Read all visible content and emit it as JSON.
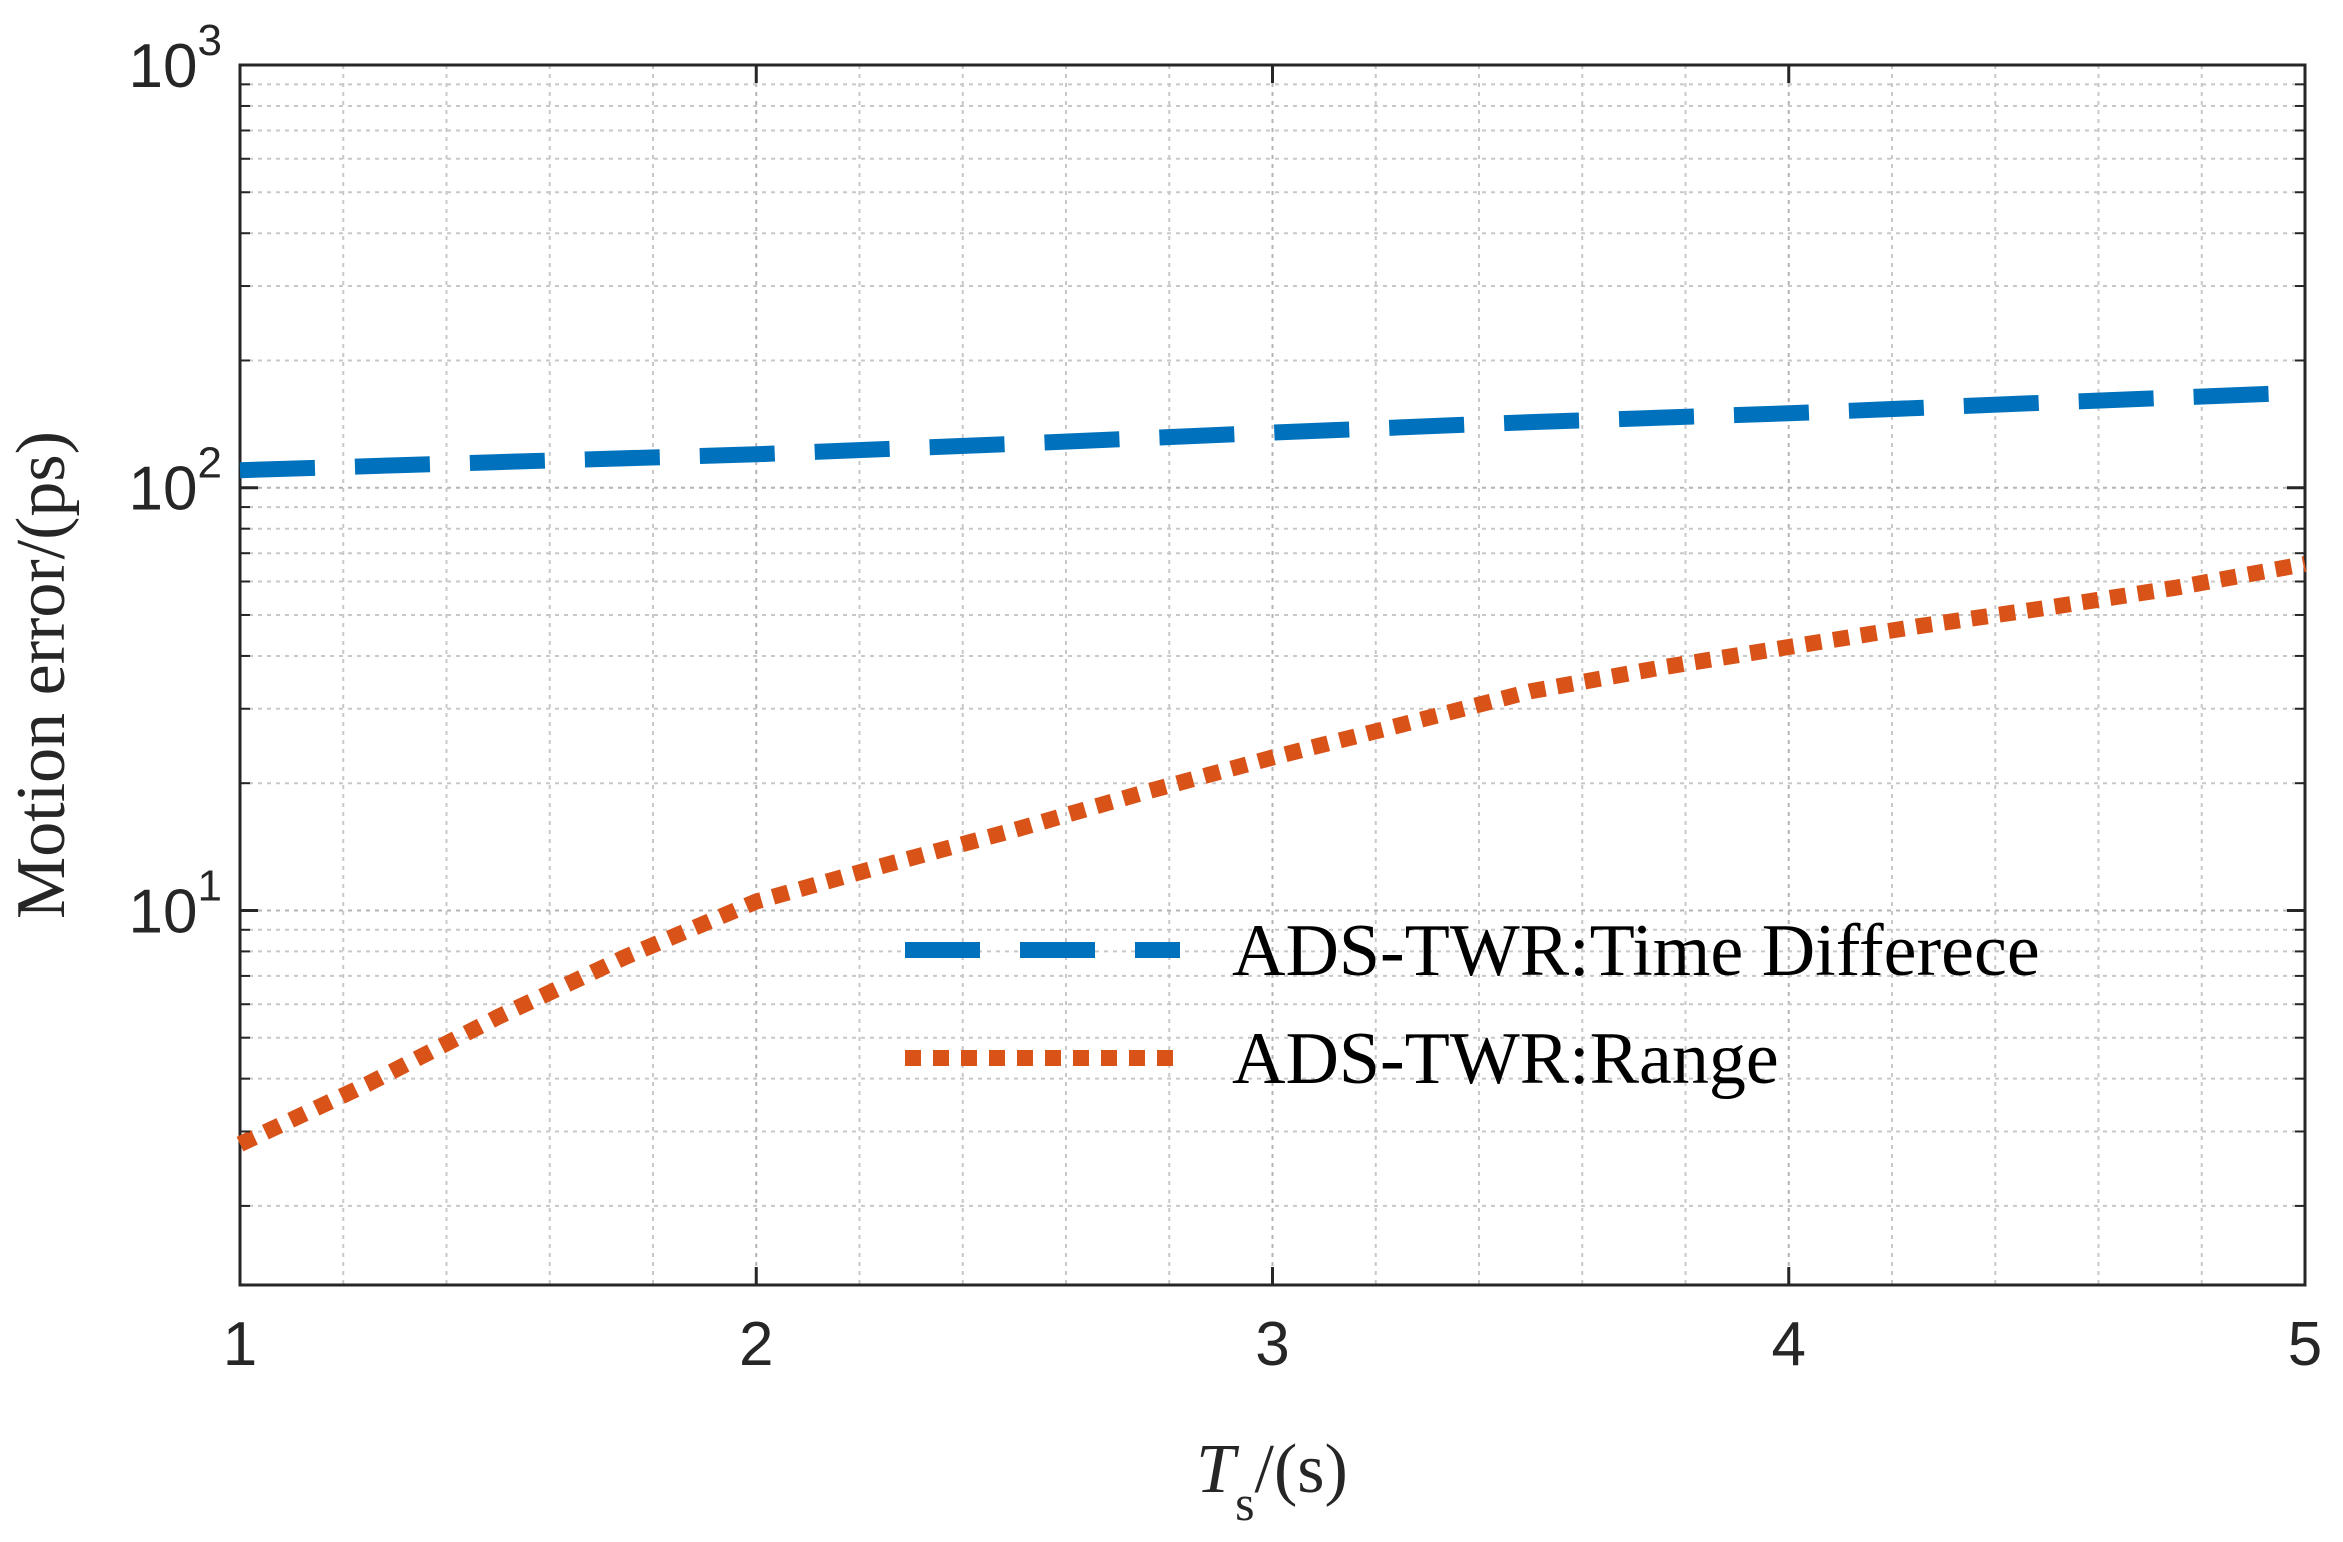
{
  "chart_data": {
    "type": "line",
    "title": "",
    "xlabel": {
      "symbol": "T",
      "subscript": "s",
      "unit": "/(s)"
    },
    "ylabel": "Motion error/(ps)",
    "xlim": [
      1,
      5
    ],
    "ylim": [
      1.3,
      1000
    ],
    "yscale": "log",
    "grid": true,
    "x_ticks": [
      1,
      2,
      3,
      4,
      5
    ],
    "x_tick_labels": [
      "1",
      "2",
      "3",
      "4",
      "5"
    ],
    "y_ticks": [
      {
        "value": 10,
        "base": "10",
        "exponent": "1"
      },
      {
        "value": 100,
        "base": "10",
        "exponent": "2"
      },
      {
        "value": 1000,
        "base": "10",
        "exponent": "3"
      }
    ],
    "legend_position": "center-right",
    "series": [
      {
        "name": "ADS-TWR:Time Differece",
        "color": "#0072BD",
        "style": "dashed",
        "x": [
          1.0,
          1.5,
          2.0,
          2.5,
          3.0,
          3.5,
          4.0,
          4.5,
          5.0
        ],
        "y": [
          110,
          115,
          120,
          127,
          135,
          143,
          150,
          159,
          168
        ]
      },
      {
        "name": "ADS-TWR:Range",
        "color": "#D95319",
        "style": "dotted",
        "x": [
          1.0,
          1.25,
          1.5,
          1.75,
          2.0,
          2.25,
          2.5,
          2.75,
          3.0,
          3.25,
          3.5,
          3.75,
          4.0,
          4.25,
          4.5,
          4.75,
          5.0
        ],
        "y": [
          2.8,
          3.9,
          5.6,
          7.8,
          10.5,
          12.8,
          15.5,
          19.0,
          23.0,
          27.5,
          33.0,
          37.5,
          42.0,
          47.0,
          52.0,
          58.0,
          66.0
        ]
      }
    ]
  }
}
